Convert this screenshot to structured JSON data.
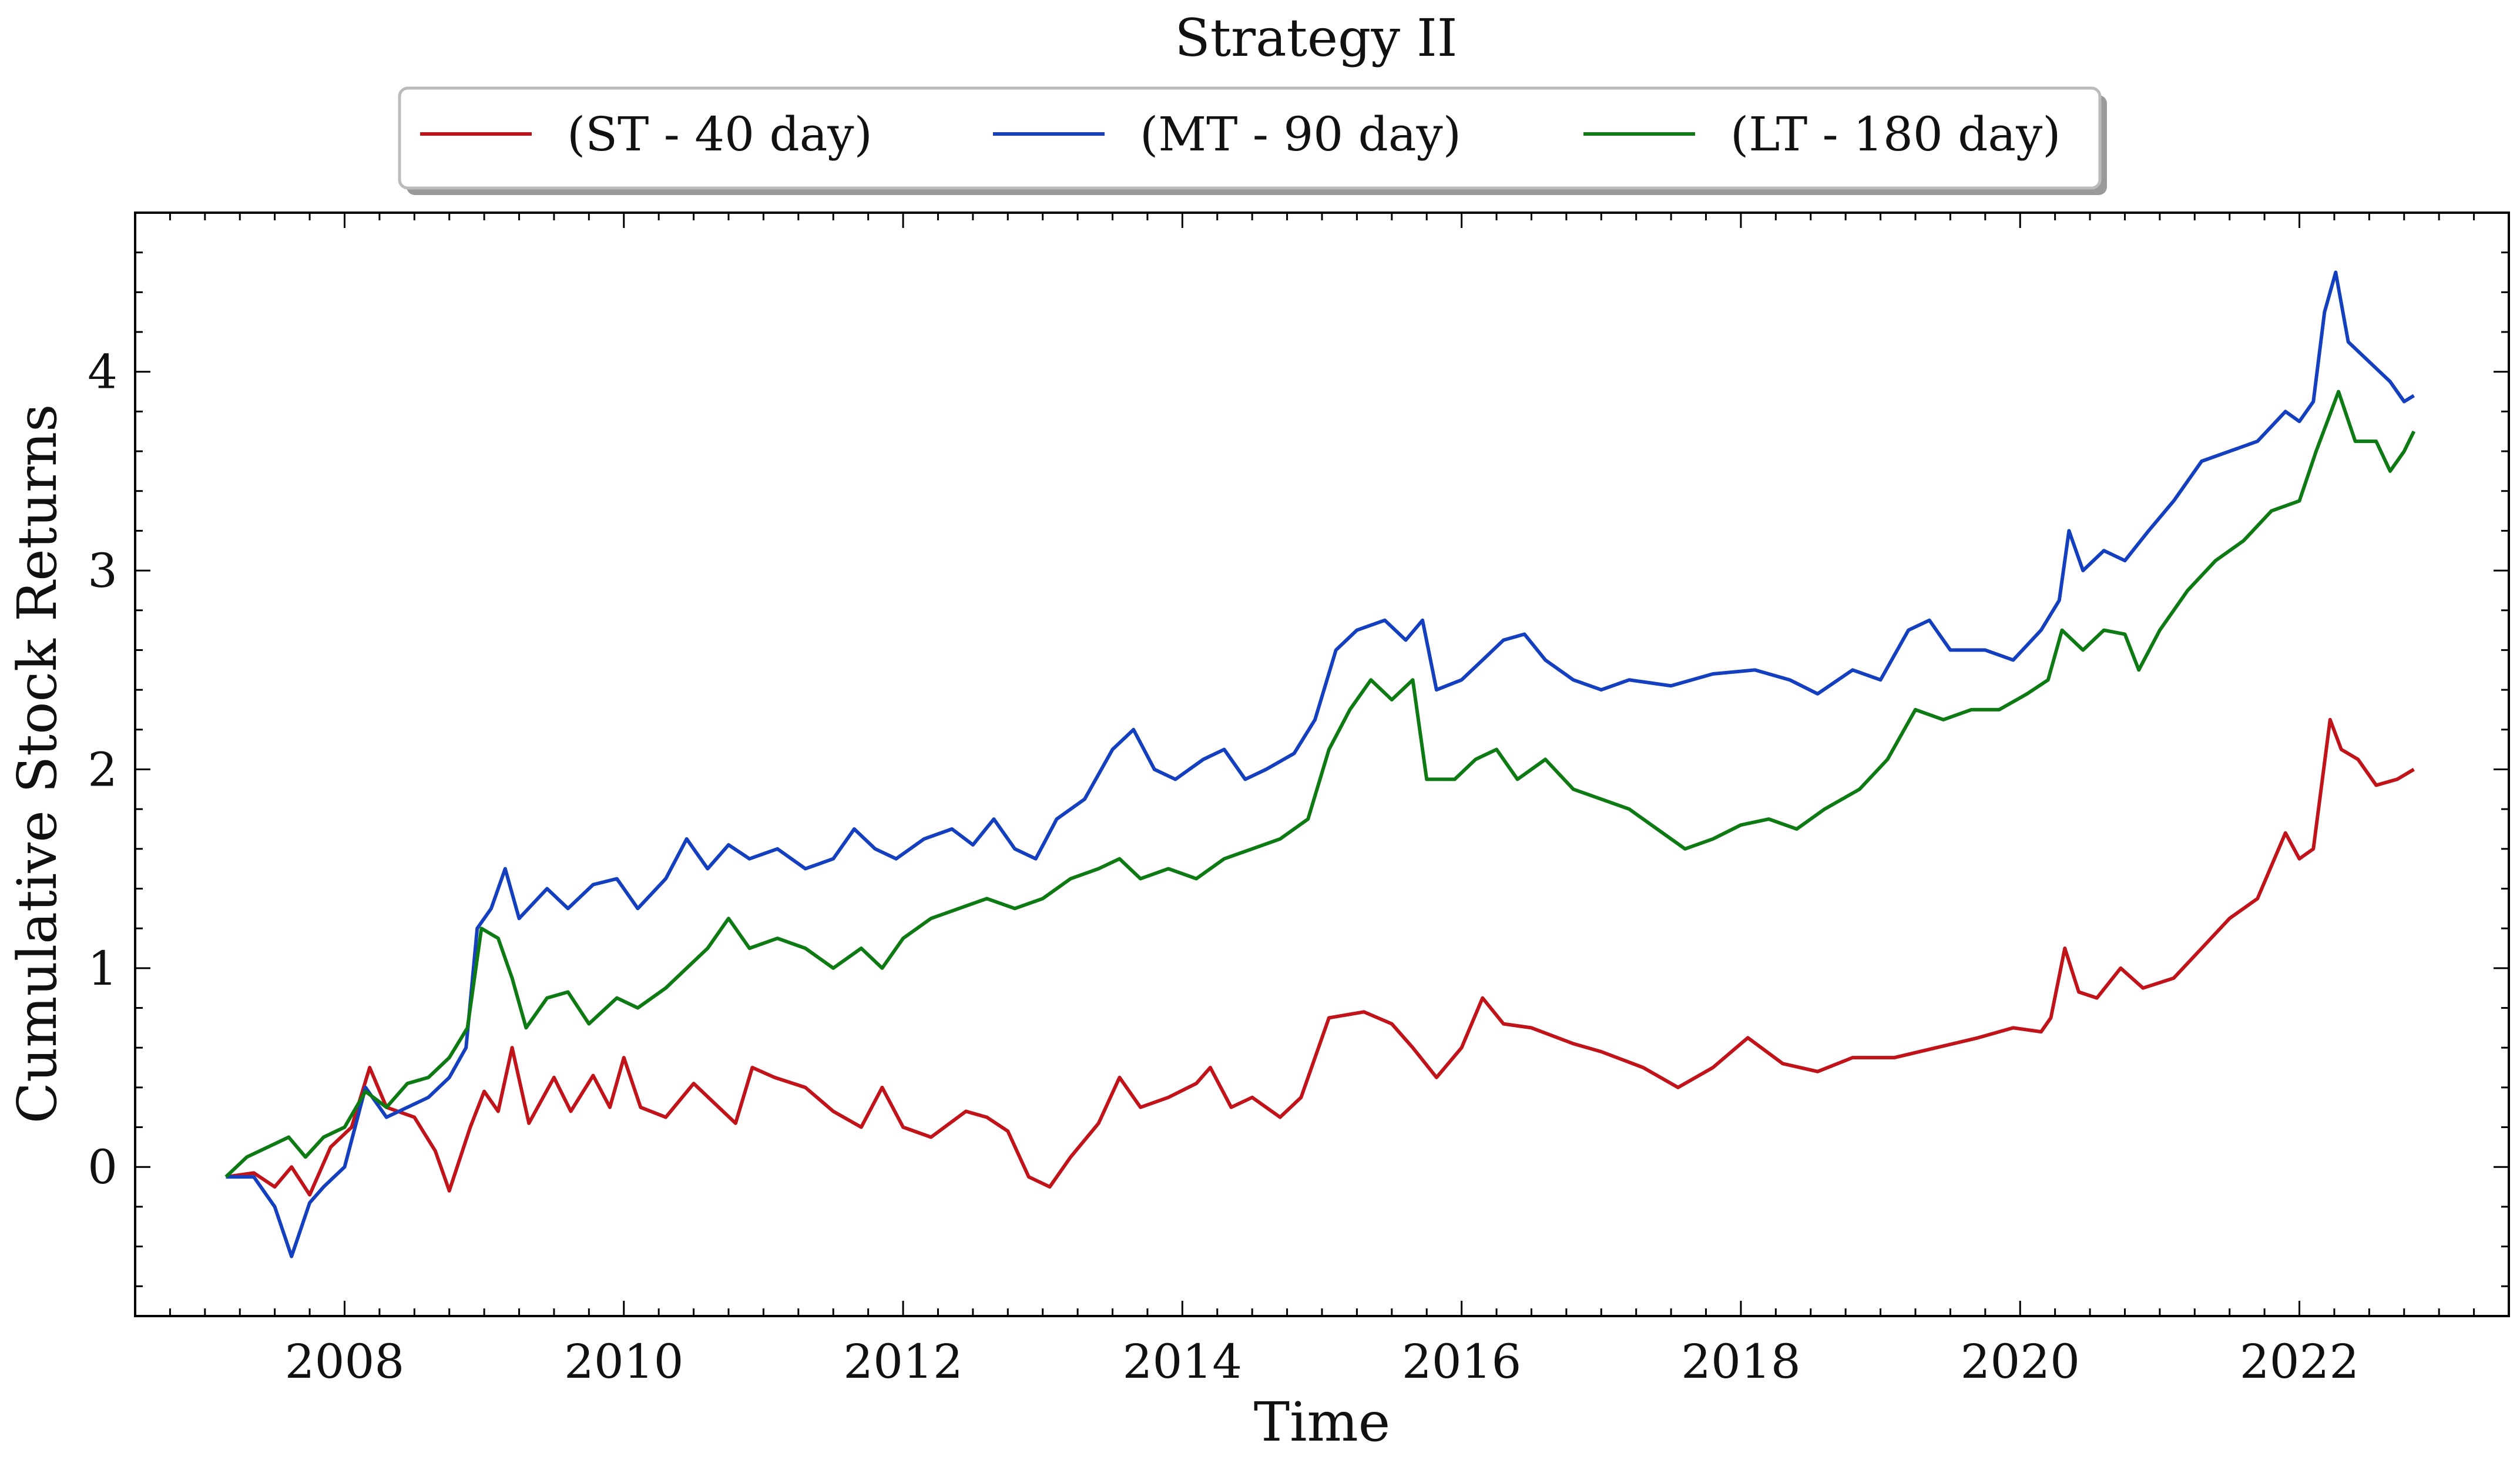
{
  "chart_data": {
    "type": "line",
    "title": "Strategy II",
    "xlabel": "Time",
    "ylabel": "Cumulative Stock Returns",
    "xlim": [
      2006.5,
      2023.5
    ],
    "ylim": [
      -0.75,
      4.8
    ],
    "x_ticks": [
      2008,
      2010,
      2012,
      2014,
      2016,
      2018,
      2020,
      2022
    ],
    "x_tick_labels": [
      "2008",
      "2010",
      "2012",
      "2014",
      "2016",
      "2018",
      "2020",
      "2022"
    ],
    "y_ticks": [
      0,
      1,
      2,
      3,
      4
    ],
    "y_tick_labels": [
      "0",
      "1",
      "2",
      "3",
      "4"
    ],
    "grid": false,
    "legend_position": "top-center-outside",
    "series": [
      {
        "name": "(ST - 40 day)",
        "color": "#c0141a",
        "points": [
          [
            2007.15,
            -0.05
          ],
          [
            2007.35,
            -0.03
          ],
          [
            2007.5,
            -0.1
          ],
          [
            2007.62,
            0.0
          ],
          [
            2007.75,
            -0.14
          ],
          [
            2007.9,
            0.1
          ],
          [
            2008.05,
            0.2
          ],
          [
            2008.18,
            0.5
          ],
          [
            2008.3,
            0.3
          ],
          [
            2008.5,
            0.25
          ],
          [
            2008.65,
            0.08
          ],
          [
            2008.75,
            -0.12
          ],
          [
            2008.9,
            0.2
          ],
          [
            2009.0,
            0.38
          ],
          [
            2009.1,
            0.28
          ],
          [
            2009.2,
            0.6
          ],
          [
            2009.32,
            0.22
          ],
          [
            2009.5,
            0.45
          ],
          [
            2009.62,
            0.28
          ],
          [
            2009.78,
            0.46
          ],
          [
            2009.9,
            0.3
          ],
          [
            2010.0,
            0.55
          ],
          [
            2010.12,
            0.3
          ],
          [
            2010.3,
            0.25
          ],
          [
            2010.5,
            0.42
          ],
          [
            2010.65,
            0.32
          ],
          [
            2010.8,
            0.22
          ],
          [
            2010.92,
            0.5
          ],
          [
            2011.08,
            0.45
          ],
          [
            2011.3,
            0.4
          ],
          [
            2011.5,
            0.28
          ],
          [
            2011.7,
            0.2
          ],
          [
            2011.85,
            0.4
          ],
          [
            2012.0,
            0.2
          ],
          [
            2012.2,
            0.15
          ],
          [
            2012.45,
            0.28
          ],
          [
            2012.6,
            0.25
          ],
          [
            2012.75,
            0.18
          ],
          [
            2012.9,
            -0.05
          ],
          [
            2013.05,
            -0.1
          ],
          [
            2013.2,
            0.05
          ],
          [
            2013.4,
            0.22
          ],
          [
            2013.55,
            0.45
          ],
          [
            2013.7,
            0.3
          ],
          [
            2013.9,
            0.35
          ],
          [
            2014.1,
            0.42
          ],
          [
            2014.2,
            0.5
          ],
          [
            2014.35,
            0.3
          ],
          [
            2014.5,
            0.35
          ],
          [
            2014.7,
            0.25
          ],
          [
            2014.85,
            0.35
          ],
          [
            2015.05,
            0.75
          ],
          [
            2015.3,
            0.78
          ],
          [
            2015.5,
            0.72
          ],
          [
            2015.65,
            0.6
          ],
          [
            2015.82,
            0.45
          ],
          [
            2016.0,
            0.6
          ],
          [
            2016.15,
            0.85
          ],
          [
            2016.3,
            0.72
          ],
          [
            2016.5,
            0.7
          ],
          [
            2016.8,
            0.62
          ],
          [
            2017.0,
            0.58
          ],
          [
            2017.3,
            0.5
          ],
          [
            2017.55,
            0.4
          ],
          [
            2017.8,
            0.5
          ],
          [
            2018.05,
            0.65
          ],
          [
            2018.3,
            0.52
          ],
          [
            2018.55,
            0.48
          ],
          [
            2018.8,
            0.55
          ],
          [
            2019.1,
            0.55
          ],
          [
            2019.4,
            0.6
          ],
          [
            2019.7,
            0.65
          ],
          [
            2019.95,
            0.7
          ],
          [
            2020.15,
            0.68
          ],
          [
            2020.22,
            0.75
          ],
          [
            2020.32,
            1.1
          ],
          [
            2020.42,
            0.88
          ],
          [
            2020.55,
            0.85
          ],
          [
            2020.72,
            1.0
          ],
          [
            2020.88,
            0.9
          ],
          [
            2021.1,
            0.95
          ],
          [
            2021.3,
            1.1
          ],
          [
            2021.5,
            1.25
          ],
          [
            2021.7,
            1.35
          ],
          [
            2021.9,
            1.68
          ],
          [
            2022.0,
            1.55
          ],
          [
            2022.1,
            1.6
          ],
          [
            2022.22,
            2.25
          ],
          [
            2022.3,
            2.1
          ],
          [
            2022.42,
            2.05
          ],
          [
            2022.55,
            1.92
          ],
          [
            2022.7,
            1.95
          ],
          [
            2022.82,
            2.0
          ]
        ]
      },
      {
        "name": "(MT - 90 day)",
        "color": "#1440c0",
        "points": [
          [
            2007.15,
            -0.05
          ],
          [
            2007.35,
            -0.05
          ],
          [
            2007.5,
            -0.2
          ],
          [
            2007.62,
            -0.45
          ],
          [
            2007.75,
            -0.18
          ],
          [
            2007.85,
            -0.1
          ],
          [
            2008.0,
            0.0
          ],
          [
            2008.15,
            0.4
          ],
          [
            2008.3,
            0.25
          ],
          [
            2008.45,
            0.3
          ],
          [
            2008.6,
            0.35
          ],
          [
            2008.75,
            0.45
          ],
          [
            2008.87,
            0.6
          ],
          [
            2008.95,
            1.2
          ],
          [
            2009.05,
            1.3
          ],
          [
            2009.15,
            1.5
          ],
          [
            2009.25,
            1.25
          ],
          [
            2009.45,
            1.4
          ],
          [
            2009.6,
            1.3
          ],
          [
            2009.78,
            1.42
          ],
          [
            2009.95,
            1.45
          ],
          [
            2010.1,
            1.3
          ],
          [
            2010.3,
            1.45
          ],
          [
            2010.45,
            1.65
          ],
          [
            2010.6,
            1.5
          ],
          [
            2010.75,
            1.62
          ],
          [
            2010.9,
            1.55
          ],
          [
            2011.1,
            1.6
          ],
          [
            2011.3,
            1.5
          ],
          [
            2011.5,
            1.55
          ],
          [
            2011.65,
            1.7
          ],
          [
            2011.8,
            1.6
          ],
          [
            2011.95,
            1.55
          ],
          [
            2012.15,
            1.65
          ],
          [
            2012.35,
            1.7
          ],
          [
            2012.5,
            1.62
          ],
          [
            2012.65,
            1.75
          ],
          [
            2012.8,
            1.6
          ],
          [
            2012.95,
            1.55
          ],
          [
            2013.1,
            1.75
          ],
          [
            2013.3,
            1.85
          ],
          [
            2013.5,
            2.1
          ],
          [
            2013.65,
            2.2
          ],
          [
            2013.8,
            2.0
          ],
          [
            2013.95,
            1.95
          ],
          [
            2014.15,
            2.05
          ],
          [
            2014.3,
            2.1
          ],
          [
            2014.45,
            1.95
          ],
          [
            2014.6,
            2.0
          ],
          [
            2014.8,
            2.08
          ],
          [
            2014.95,
            2.25
          ],
          [
            2015.1,
            2.6
          ],
          [
            2015.25,
            2.7
          ],
          [
            2015.45,
            2.75
          ],
          [
            2015.6,
            2.65
          ],
          [
            2015.72,
            2.75
          ],
          [
            2015.82,
            2.4
          ],
          [
            2016.0,
            2.45
          ],
          [
            2016.15,
            2.55
          ],
          [
            2016.3,
            2.65
          ],
          [
            2016.45,
            2.68
          ],
          [
            2016.6,
            2.55
          ],
          [
            2016.8,
            2.45
          ],
          [
            2017.0,
            2.4
          ],
          [
            2017.2,
            2.45
          ],
          [
            2017.5,
            2.42
          ],
          [
            2017.8,
            2.48
          ],
          [
            2018.1,
            2.5
          ],
          [
            2018.35,
            2.45
          ],
          [
            2018.55,
            2.38
          ],
          [
            2018.8,
            2.5
          ],
          [
            2019.0,
            2.45
          ],
          [
            2019.2,
            2.7
          ],
          [
            2019.35,
            2.75
          ],
          [
            2019.5,
            2.6
          ],
          [
            2019.75,
            2.6
          ],
          [
            2019.95,
            2.55
          ],
          [
            2020.15,
            2.7
          ],
          [
            2020.28,
            2.85
          ],
          [
            2020.35,
            3.2
          ],
          [
            2020.45,
            3.0
          ],
          [
            2020.6,
            3.1
          ],
          [
            2020.75,
            3.05
          ],
          [
            2020.92,
            3.2
          ],
          [
            2021.1,
            3.35
          ],
          [
            2021.3,
            3.55
          ],
          [
            2021.5,
            3.6
          ],
          [
            2021.7,
            3.65
          ],
          [
            2021.9,
            3.8
          ],
          [
            2022.0,
            3.75
          ],
          [
            2022.1,
            3.85
          ],
          [
            2022.18,
            4.3
          ],
          [
            2022.26,
            4.5
          ],
          [
            2022.35,
            4.15
          ],
          [
            2022.5,
            4.05
          ],
          [
            2022.65,
            3.95
          ],
          [
            2022.75,
            3.85
          ],
          [
            2022.82,
            3.88
          ]
        ]
      },
      {
        "name": "(LT - 180 day)",
        "color": "#0e7a14",
        "points": [
          [
            2007.15,
            -0.05
          ],
          [
            2007.3,
            0.05
          ],
          [
            2007.45,
            0.1
          ],
          [
            2007.6,
            0.15
          ],
          [
            2007.72,
            0.05
          ],
          [
            2007.85,
            0.15
          ],
          [
            2008.0,
            0.2
          ],
          [
            2008.15,
            0.38
          ],
          [
            2008.3,
            0.3
          ],
          [
            2008.45,
            0.42
          ],
          [
            2008.6,
            0.45
          ],
          [
            2008.75,
            0.55
          ],
          [
            2008.88,
            0.7
          ],
          [
            2008.98,
            1.2
          ],
          [
            2009.1,
            1.15
          ],
          [
            2009.2,
            0.95
          ],
          [
            2009.3,
            0.7
          ],
          [
            2009.45,
            0.85
          ],
          [
            2009.6,
            0.88
          ],
          [
            2009.75,
            0.72
          ],
          [
            2009.95,
            0.85
          ],
          [
            2010.1,
            0.8
          ],
          [
            2010.3,
            0.9
          ],
          [
            2010.45,
            1.0
          ],
          [
            2010.6,
            1.1
          ],
          [
            2010.75,
            1.25
          ],
          [
            2010.9,
            1.1
          ],
          [
            2011.1,
            1.15
          ],
          [
            2011.3,
            1.1
          ],
          [
            2011.5,
            1.0
          ],
          [
            2011.7,
            1.1
          ],
          [
            2011.85,
            1.0
          ],
          [
            2012.0,
            1.15
          ],
          [
            2012.2,
            1.25
          ],
          [
            2012.4,
            1.3
          ],
          [
            2012.6,
            1.35
          ],
          [
            2012.8,
            1.3
          ],
          [
            2013.0,
            1.35
          ],
          [
            2013.2,
            1.45
          ],
          [
            2013.4,
            1.5
          ],
          [
            2013.55,
            1.55
          ],
          [
            2013.7,
            1.45
          ],
          [
            2013.9,
            1.5
          ],
          [
            2014.1,
            1.45
          ],
          [
            2014.3,
            1.55
          ],
          [
            2014.5,
            1.6
          ],
          [
            2014.7,
            1.65
          ],
          [
            2014.9,
            1.75
          ],
          [
            2015.05,
            2.1
          ],
          [
            2015.2,
            2.3
          ],
          [
            2015.35,
            2.45
          ],
          [
            2015.5,
            2.35
          ],
          [
            2015.65,
            2.45
          ],
          [
            2015.75,
            1.95
          ],
          [
            2015.95,
            1.95
          ],
          [
            2016.1,
            2.05
          ],
          [
            2016.25,
            2.1
          ],
          [
            2016.4,
            1.95
          ],
          [
            2016.6,
            2.05
          ],
          [
            2016.8,
            1.9
          ],
          [
            2017.0,
            1.85
          ],
          [
            2017.2,
            1.8
          ],
          [
            2017.4,
            1.7
          ],
          [
            2017.6,
            1.6
          ],
          [
            2017.8,
            1.65
          ],
          [
            2018.0,
            1.72
          ],
          [
            2018.2,
            1.75
          ],
          [
            2018.4,
            1.7
          ],
          [
            2018.6,
            1.8
          ],
          [
            2018.85,
            1.9
          ],
          [
            2019.05,
            2.05
          ],
          [
            2019.25,
            2.3
          ],
          [
            2019.45,
            2.25
          ],
          [
            2019.65,
            2.3
          ],
          [
            2019.85,
            2.3
          ],
          [
            2020.05,
            2.38
          ],
          [
            2020.2,
            2.45
          ],
          [
            2020.3,
            2.7
          ],
          [
            2020.45,
            2.6
          ],
          [
            2020.6,
            2.7
          ],
          [
            2020.75,
            2.68
          ],
          [
            2020.85,
            2.5
          ],
          [
            2021.0,
            2.7
          ],
          [
            2021.2,
            2.9
          ],
          [
            2021.4,
            3.05
          ],
          [
            2021.6,
            3.15
          ],
          [
            2021.8,
            3.3
          ],
          [
            2022.0,
            3.35
          ],
          [
            2022.12,
            3.6
          ],
          [
            2022.2,
            3.75
          ],
          [
            2022.28,
            3.9
          ],
          [
            2022.4,
            3.65
          ],
          [
            2022.55,
            3.65
          ],
          [
            2022.65,
            3.5
          ],
          [
            2022.75,
            3.6
          ],
          [
            2022.82,
            3.7
          ]
        ]
      }
    ]
  }
}
